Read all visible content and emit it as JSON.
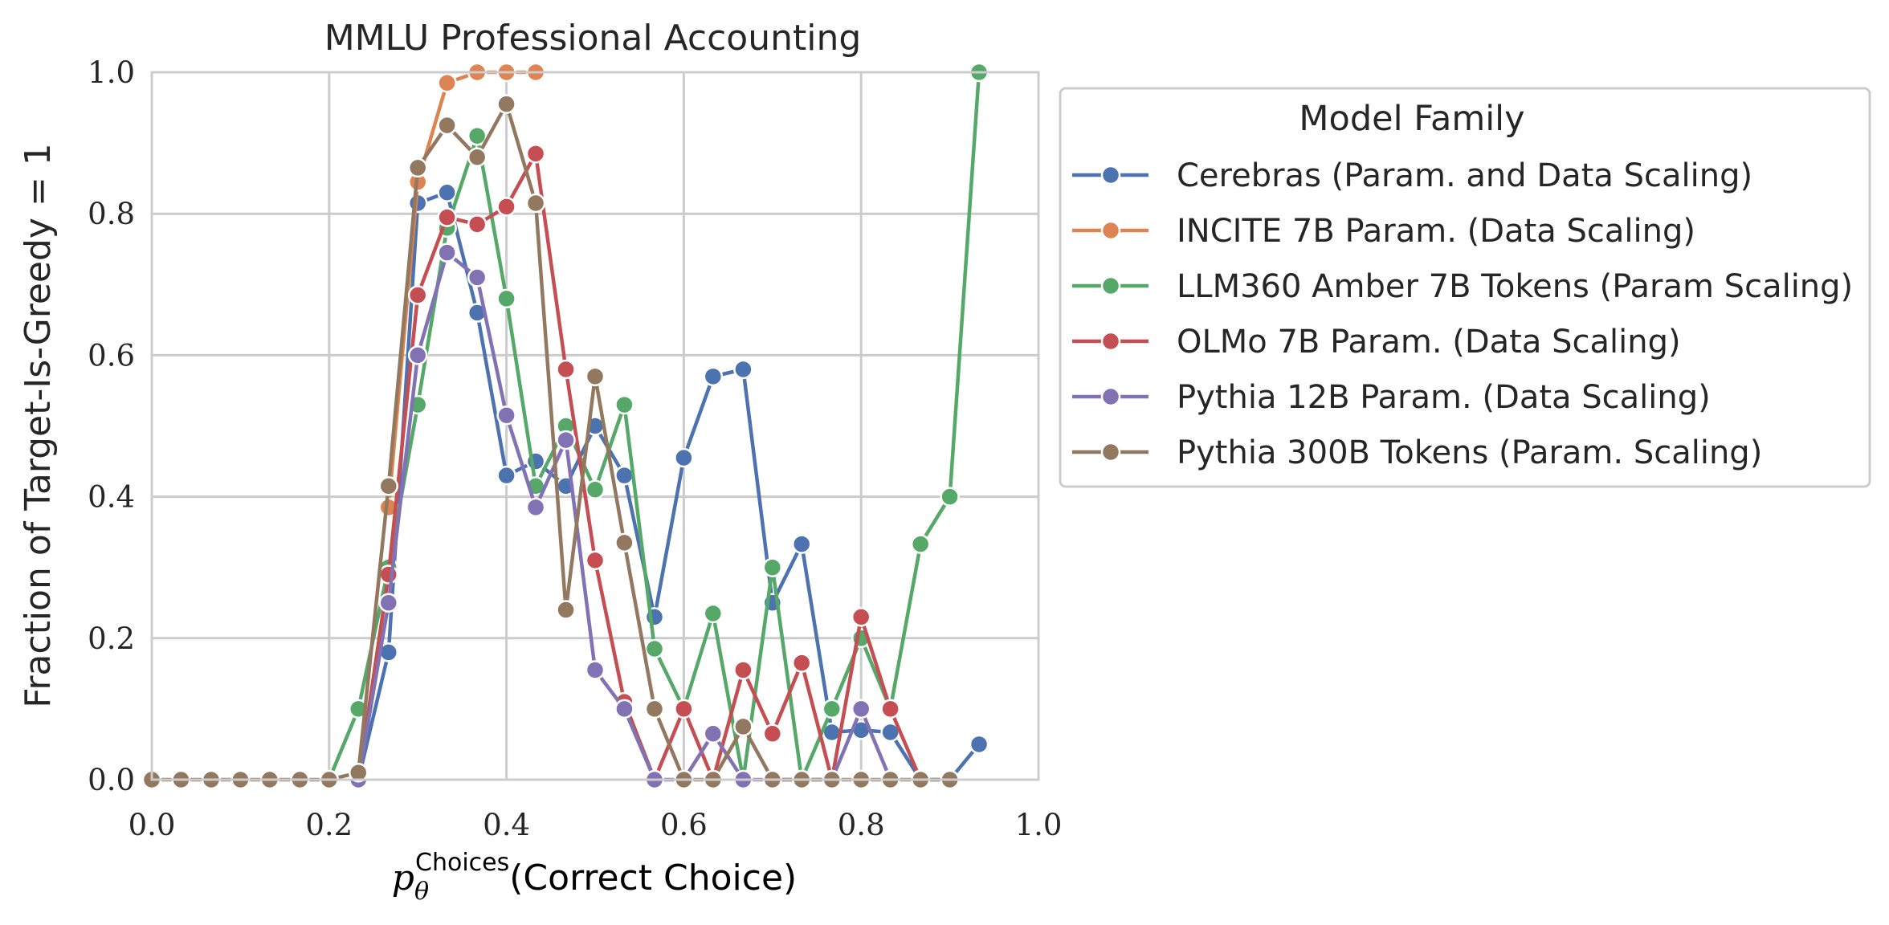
{
  "chart_data": {
    "type": "line",
    "title": "MMLU Professional Accounting",
    "xlabel": {
      "symbol": "p",
      "subscript": "θ",
      "superscript": "Choices",
      "text": "(Correct Choice)"
    },
    "ylabel": "Fraction of Target-Is-Greedy = 1",
    "xlim": [
      0.0,
      1.0
    ],
    "ylim": [
      0.0,
      1.0
    ],
    "xticks": [
      0.0,
      0.2,
      0.4,
      0.6,
      0.8,
      1.0
    ],
    "yticks": [
      0.0,
      0.2,
      0.4,
      0.6,
      0.8,
      1.0
    ],
    "xtick_labels": [
      "0.0",
      "0.2",
      "0.4",
      "0.6",
      "0.8",
      "1.0"
    ],
    "ytick_labels": [
      "0.0",
      "0.2",
      "0.4",
      "0.6",
      "0.8",
      "1.0"
    ],
    "grid": true,
    "legend": {
      "title": "Model Family",
      "placement": "outside-right-top"
    },
    "series": [
      {
        "name": "Cerebras (Param. and Data Scaling)",
        "color": "#4c72b0",
        "x": [
          0.233,
          0.267,
          0.3,
          0.333,
          0.367,
          0.4,
          0.433,
          0.467,
          0.5,
          0.533,
          0.567,
          0.6,
          0.633,
          0.667,
          0.7,
          0.733,
          0.767,
          0.8,
          0.833,
          0.867,
          0.9,
          0.933
        ],
        "y": [
          0.0,
          0.18,
          0.815,
          0.83,
          0.66,
          0.43,
          0.45,
          0.415,
          0.5,
          0.43,
          0.23,
          0.455,
          0.57,
          0.58,
          0.25,
          0.333,
          0.067,
          0.07,
          0.067,
          0.0,
          0.0,
          0.05
        ]
      },
      {
        "name": "INCITE 7B Param. (Data Scaling)",
        "color": "#dd8452",
        "x": [
          0.267,
          0.3,
          0.333,
          0.367,
          0.4,
          0.433
        ],
        "y": [
          0.385,
          0.845,
          0.985,
          1.0,
          1.0,
          1.0
        ]
      },
      {
        "name": "LLM360 Amber 7B Tokens (Param Scaling)",
        "color": "#55a868",
        "x": [
          0.2,
          0.233,
          0.267,
          0.3,
          0.333,
          0.367,
          0.4,
          0.433,
          0.467,
          0.5,
          0.533,
          0.567,
          0.6,
          0.633,
          0.667,
          0.7,
          0.733,
          0.767,
          0.8,
          0.833,
          0.867,
          0.9,
          0.933
        ],
        "y": [
          0.0,
          0.1,
          0.3,
          0.53,
          0.78,
          0.91,
          0.68,
          0.415,
          0.5,
          0.41,
          0.53,
          0.185,
          0.1,
          0.235,
          0.0,
          0.3,
          0.0,
          0.1,
          0.2,
          0.1,
          0.333,
          0.4,
          1.0
        ]
      },
      {
        "name": "OLMo 7B Param. (Data Scaling)",
        "color": "#c44e52",
        "x": [
          0.233,
          0.267,
          0.3,
          0.333,
          0.367,
          0.4,
          0.433,
          0.467,
          0.5,
          0.533,
          0.567,
          0.6,
          0.633,
          0.667,
          0.7,
          0.733,
          0.767,
          0.8,
          0.833,
          0.867
        ],
        "y": [
          0.0,
          0.29,
          0.685,
          0.795,
          0.785,
          0.81,
          0.885,
          0.58,
          0.31,
          0.11,
          0.0,
          0.1,
          0.0,
          0.155,
          0.065,
          0.165,
          0.0,
          0.23,
          0.1,
          0.0
        ]
      },
      {
        "name": "Pythia 12B Param. (Data Scaling)",
        "color": "#8172b3",
        "x": [
          0.233,
          0.267,
          0.3,
          0.333,
          0.367,
          0.4,
          0.433,
          0.467,
          0.5,
          0.533,
          0.567,
          0.6,
          0.633,
          0.667,
          0.7,
          0.733,
          0.767,
          0.8,
          0.833
        ],
        "y": [
          0.0,
          0.25,
          0.6,
          0.745,
          0.71,
          0.515,
          0.385,
          0.48,
          0.155,
          0.1,
          0.0,
          0.0,
          0.065,
          0.0,
          0.0,
          0.0,
          0.0,
          0.1,
          0.0
        ]
      },
      {
        "name": "Pythia 300B Tokens (Param. Scaling)",
        "color": "#937860",
        "x": [
          0.0,
          0.033,
          0.067,
          0.1,
          0.133,
          0.167,
          0.2,
          0.233,
          0.267,
          0.3,
          0.333,
          0.367,
          0.4,
          0.433,
          0.467,
          0.5,
          0.533,
          0.567,
          0.6,
          0.633,
          0.667,
          0.7,
          0.733,
          0.767,
          0.8,
          0.833,
          0.867,
          0.9
        ],
        "y": [
          0.0,
          0.0,
          0.0,
          0.0,
          0.0,
          0.0,
          0.0,
          0.01,
          0.415,
          0.865,
          0.925,
          0.88,
          0.955,
          0.815,
          0.24,
          0.57,
          0.335,
          0.1,
          0.0,
          0.0,
          0.075,
          0.0,
          0.0,
          0.0,
          0.0,
          0.0,
          0.0,
          0.0
        ]
      }
    ]
  }
}
